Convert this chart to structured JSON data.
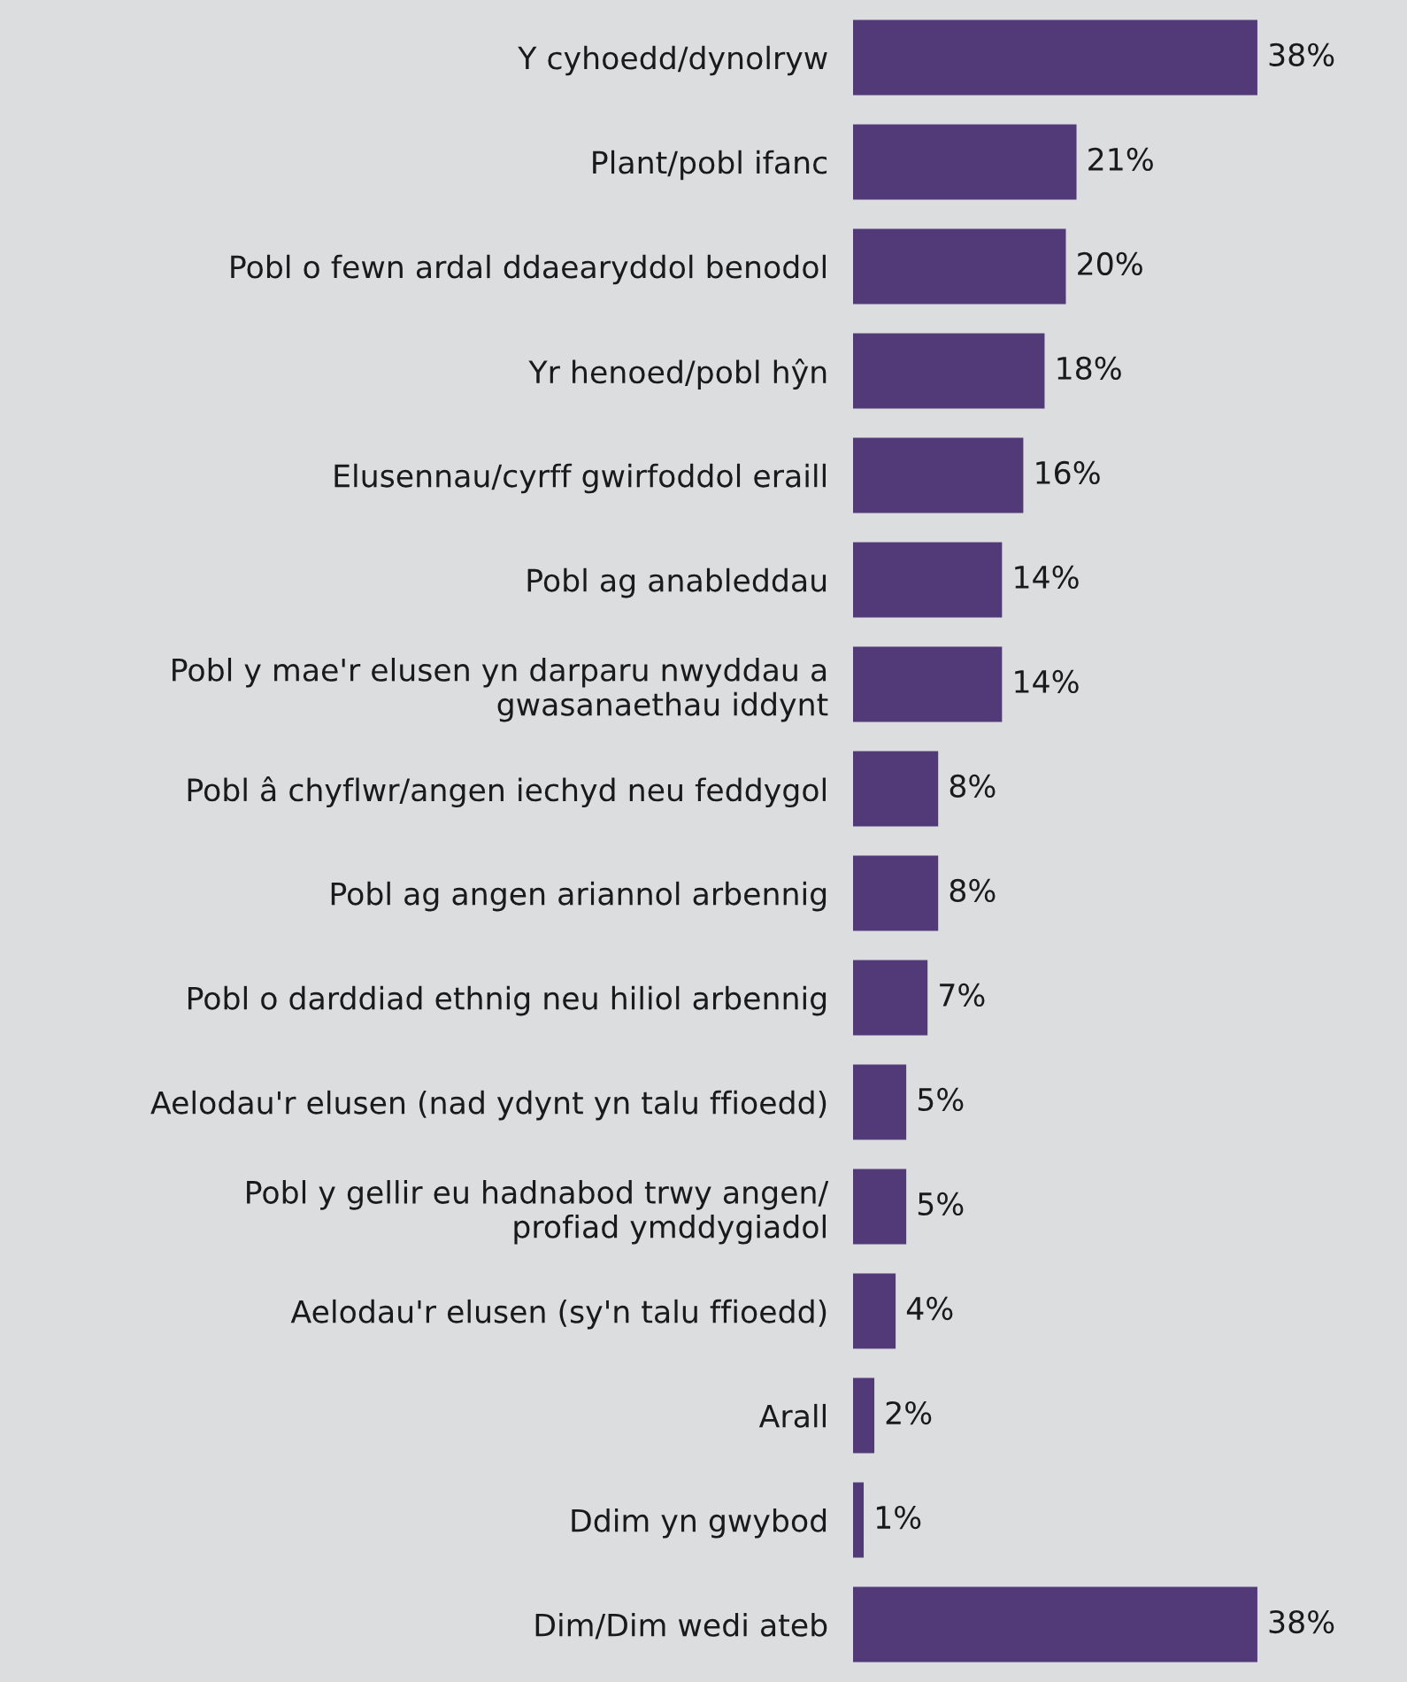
{
  "chart_data": {
    "type": "bar",
    "orientation": "horizontal",
    "categories": [
      "Y cyhoedd/dynolryw",
      "Plant/pobl ifanc",
      "Pobl o fewn ardal ddaearyddol benodol",
      "Yr henoed/pobl hŷn",
      "Elusennau/cyrff gwirfoddol eraill",
      "Pobl ag anableddau",
      "Pobl y mae'r elusen yn darparu nwyddau a\ngwasanaethau iddynt",
      "Pobl â chyflwr/angen iechyd neu feddygol",
      "Pobl ag angen ariannol arbennig",
      "Pobl o darddiad ethnig neu hiliol arbennig",
      "Aelodau'r elusen (nad ydynt yn talu ffioedd)",
      "Pobl y gellir eu hadnabod trwy angen/\nprofiad ymddygiadol",
      "Aelodau'r elusen (sy'n talu ffioedd)",
      "Arall",
      "Ddim yn gwybod",
      "Dim/Dim wedi ateb"
    ],
    "values": [
      38,
      21,
      20,
      18,
      16,
      14,
      14,
      8,
      8,
      7,
      5,
      5,
      4,
      2,
      1,
      38
    ],
    "value_labels": [
      "38%",
      "21%",
      "20%",
      "18%",
      "16%",
      "14%",
      "14%",
      "8%",
      "8%",
      "7%",
      "5%",
      "5%",
      "4%",
      "2%",
      "1%",
      "38%"
    ],
    "color": "#523a78",
    "grid": false,
    "legend": false
  }
}
